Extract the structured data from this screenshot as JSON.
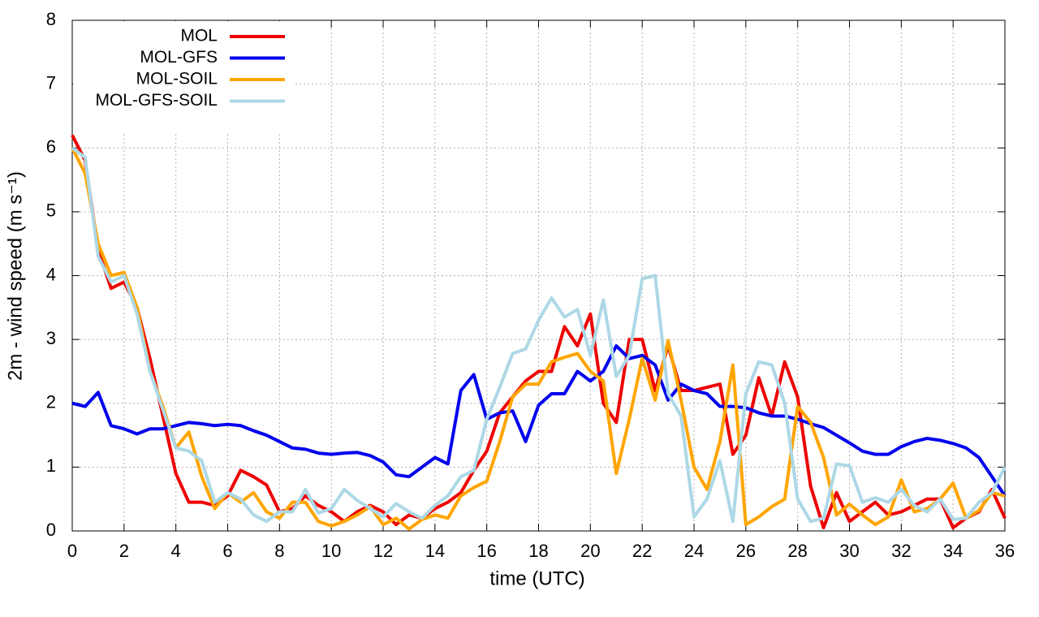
{
  "chart_data": {
    "type": "line",
    "xlabel": "time (UTC)",
    "ylabel": "2m - wind speed  (m s⁻¹)",
    "xlim": [
      0,
      36
    ],
    "ylim": [
      0,
      8
    ],
    "xticks": [
      0,
      2,
      4,
      6,
      8,
      10,
      12,
      14,
      16,
      18,
      20,
      22,
      24,
      26,
      28,
      30,
      32,
      34,
      36
    ],
    "yticks": [
      0,
      1,
      2,
      3,
      4,
      5,
      6,
      7,
      8
    ],
    "grid": true,
    "legend": "top-left",
    "x": [
      0,
      0.5,
      1,
      1.5,
      2,
      2.5,
      3,
      3.5,
      4,
      4.5,
      5,
      5.5,
      6,
      6.5,
      7,
      7.5,
      8,
      8.5,
      9,
      9.5,
      10,
      10.5,
      11,
      11.5,
      12,
      12.5,
      13,
      13.5,
      14,
      14.5,
      15,
      15.5,
      16,
      16.5,
      17,
      17.5,
      18,
      18.5,
      19,
      19.5,
      20,
      20.5,
      21,
      21.5,
      22,
      22.5,
      23,
      23.5,
      24,
      24.5,
      25,
      25.5,
      26,
      26.5,
      27,
      27.5,
      28,
      28.5,
      29,
      29.5,
      30,
      30.5,
      31,
      31.5,
      32,
      32.5,
      33,
      33.5,
      34,
      34.5,
      35,
      35.5,
      36
    ],
    "series": [
      {
        "name": "MOL",
        "color": "#ee0000",
        "values": [
          6.2,
          5.8,
          4.4,
          3.8,
          3.9,
          3.5,
          2.7,
          1.8,
          0.9,
          0.45,
          0.45,
          0.4,
          0.55,
          0.95,
          0.85,
          0.72,
          0.3,
          0.35,
          0.55,
          0.4,
          0.3,
          0.15,
          0.3,
          0.4,
          0.3,
          0.1,
          0.25,
          0.2,
          0.35,
          0.45,
          0.6,
          0.95,
          1.25,
          1.85,
          2.1,
          2.35,
          2.5,
          2.5,
          3.2,
          2.9,
          3.4,
          2.0,
          1.7,
          3.0,
          3.0,
          2.2,
          2.9,
          2.2,
          2.2,
          2.25,
          2.3,
          1.2,
          1.5,
          2.4,
          1.8,
          2.65,
          2.1,
          0.7,
          0.05,
          0.6,
          0.15,
          0.3,
          0.45,
          0.25,
          0.3,
          0.4,
          0.5,
          0.5,
          0.05,
          0.2,
          0.3,
          0.65,
          0.2
        ]
      },
      {
        "name": "MOL-GFS",
        "color": "#0000ee",
        "values": [
          2.0,
          1.95,
          2.17,
          1.65,
          1.6,
          1.52,
          1.6,
          1.6,
          1.65,
          1.7,
          1.68,
          1.65,
          1.67,
          1.65,
          1.57,
          1.5,
          1.4,
          1.3,
          1.28,
          1.22,
          1.2,
          1.22,
          1.23,
          1.18,
          1.08,
          0.88,
          0.85,
          1.0,
          1.15,
          1.05,
          2.2,
          2.45,
          1.75,
          1.85,
          1.88,
          1.4,
          1.97,
          2.15,
          2.15,
          2.5,
          2.35,
          2.5,
          2.9,
          2.7,
          2.75,
          2.6,
          2.05,
          2.3,
          2.2,
          2.15,
          1.95,
          1.95,
          1.93,
          1.85,
          1.8,
          1.8,
          1.75,
          1.68,
          1.62,
          1.5,
          1.38,
          1.25,
          1.2,
          1.2,
          1.32,
          1.4,
          1.45,
          1.42,
          1.37,
          1.3,
          1.15,
          0.85,
          0.55
        ]
      },
      {
        "name": "MOL-SOIL",
        "color": "#ffa500",
        "values": [
          6.0,
          5.6,
          4.5,
          4.0,
          4.05,
          3.5,
          2.5,
          1.95,
          1.3,
          1.55,
          0.85,
          0.35,
          0.6,
          0.45,
          0.6,
          0.3,
          0.2,
          0.45,
          0.45,
          0.15,
          0.08,
          0.15,
          0.25,
          0.38,
          0.1,
          0.2,
          0.03,
          0.18,
          0.25,
          0.2,
          0.55,
          0.68,
          0.78,
          1.4,
          2.1,
          2.3,
          2.3,
          2.65,
          2.72,
          2.78,
          2.5,
          2.35,
          0.9,
          1.75,
          2.7,
          2.05,
          2.98,
          2.05,
          1.0,
          0.65,
          1.4,
          2.6,
          0.1,
          0.22,
          0.38,
          0.5,
          1.95,
          1.7,
          1.15,
          0.25,
          0.42,
          0.25,
          0.1,
          0.22,
          0.8,
          0.3,
          0.35,
          0.5,
          0.75,
          0.2,
          0.32,
          0.6,
          0.55
        ]
      },
      {
        "name": "MOL-GFS-SOIL",
        "color": "#add8e6",
        "values": [
          6.0,
          5.85,
          4.3,
          3.9,
          4.0,
          3.4,
          2.5,
          1.9,
          1.3,
          1.25,
          1.1,
          0.45,
          0.6,
          0.5,
          0.25,
          0.15,
          0.3,
          0.3,
          0.65,
          0.28,
          0.35,
          0.65,
          0.48,
          0.35,
          0.22,
          0.43,
          0.3,
          0.2,
          0.4,
          0.55,
          0.85,
          0.95,
          1.75,
          2.25,
          2.78,
          2.85,
          3.3,
          3.65,
          3.35,
          3.47,
          2.75,
          3.62,
          2.42,
          2.75,
          3.95,
          4.0,
          2.15,
          1.8,
          0.22,
          0.5,
          1.1,
          0.15,
          2.15,
          2.65,
          2.6,
          2.0,
          0.5,
          0.15,
          0.2,
          1.05,
          1.02,
          0.45,
          0.52,
          0.45,
          0.65,
          0.4,
          0.3,
          0.5,
          0.18,
          0.2,
          0.45,
          0.6,
          1.0
        ]
      }
    ]
  }
}
